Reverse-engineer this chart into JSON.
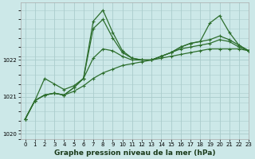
{
  "title": "Graphe pression niveau de la mer (hPa)",
  "background_color": "#cce8e8",
  "grid_color": "#aacccc",
  "line_color": "#2d6e2d",
  "xlim": [
    -0.5,
    23
  ],
  "ylim": [
    1019.85,
    1023.55
  ],
  "yticks": [
    1020,
    1021,
    1022
  ],
  "xticks": [
    0,
    1,
    2,
    3,
    4,
    5,
    6,
    7,
    8,
    9,
    10,
    11,
    12,
    13,
    14,
    15,
    16,
    17,
    18,
    19,
    20,
    21,
    22,
    23
  ],
  "series": [
    [
      1020.4,
      1020.9,
      1021.05,
      1021.1,
      1021.05,
      1021.15,
      1021.3,
      1021.5,
      1021.65,
      1021.75,
      1021.85,
      1021.9,
      1021.95,
      1022.0,
      1022.05,
      1022.1,
      1022.15,
      1022.2,
      1022.25,
      1022.3,
      1022.3,
      1022.3,
      1022.3,
      1022.25
    ],
    [
      1020.4,
      1020.9,
      1021.5,
      1021.35,
      1021.2,
      1021.3,
      1021.5,
      1022.05,
      1022.3,
      1022.25,
      1022.1,
      1022.0,
      1022.0,
      1022.0,
      1022.1,
      1022.2,
      1022.3,
      1022.35,
      1022.4,
      1022.45,
      1022.55,
      1022.5,
      1022.35,
      1022.25
    ],
    [
      1020.4,
      1020.9,
      1021.05,
      1021.1,
      1021.05,
      1021.25,
      1021.5,
      1022.85,
      1023.1,
      1022.6,
      1022.2,
      1022.05,
      1022.0,
      1022.0,
      1022.1,
      1022.2,
      1022.35,
      1022.45,
      1022.5,
      1022.55,
      1022.65,
      1022.55,
      1022.4,
      1022.25
    ],
    [
      1020.4,
      1020.9,
      1021.05,
      1021.1,
      1021.05,
      1021.25,
      1021.5,
      1023.05,
      1023.35,
      1022.75,
      1022.25,
      1022.05,
      1022.0,
      1022.0,
      1022.1,
      1022.2,
      1022.35,
      1022.45,
      1022.5,
      1023.0,
      1023.2,
      1022.75,
      1022.4,
      1022.25
    ]
  ],
  "marker_size": 3.0,
  "line_width": 0.9,
  "font_size_label": 6.5,
  "font_size_tick": 5.0,
  "figsize": [
    3.2,
    2.0
  ],
  "dpi": 100
}
